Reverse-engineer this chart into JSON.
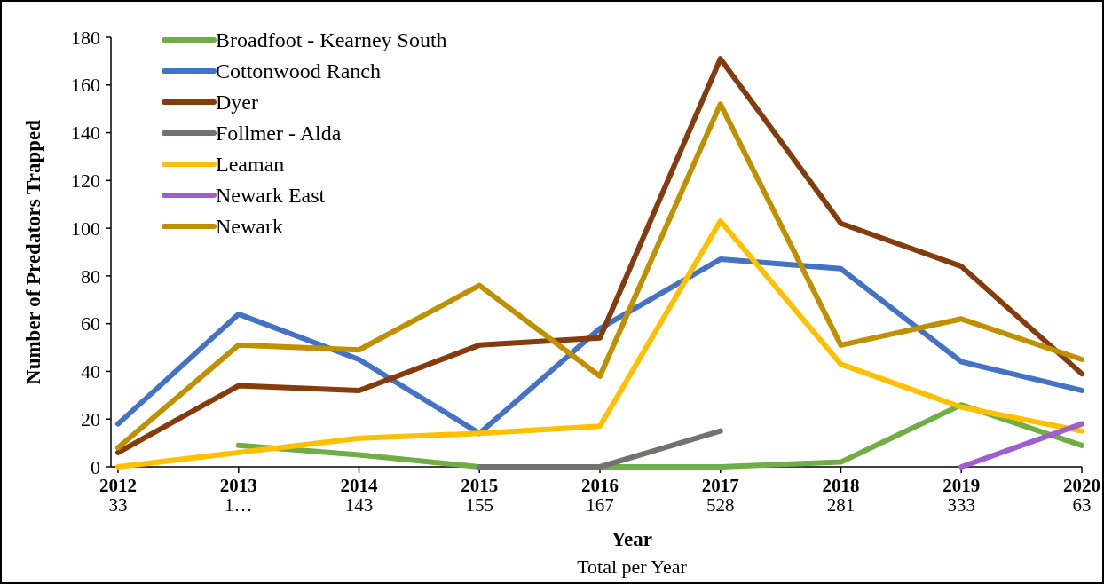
{
  "chart_data": {
    "type": "line",
    "xlabel": "Year",
    "ylabel": "Number of Predators Trapped",
    "categories": [
      "2012",
      "2013",
      "2014",
      "2015",
      "2016",
      "2017",
      "2018",
      "2019",
      "2020"
    ],
    "series": [
      {
        "name": "Broadfoot - Kearney South",
        "color": "#70ad47",
        "values": [
          null,
          9,
          5,
          0,
          0,
          0,
          2,
          26,
          9
        ]
      },
      {
        "name": "Cottonwood Ranch",
        "color": "#4472c4",
        "values": [
          18,
          64,
          45,
          14,
          58,
          87,
          83,
          44,
          32
        ]
      },
      {
        "name": "Dyer",
        "color": "#843c0c",
        "values": [
          6,
          34,
          32,
          51,
          54,
          171,
          102,
          84,
          39
        ]
      },
      {
        "name": "Follmer - Alda",
        "color": "#767171",
        "values": [
          null,
          null,
          null,
          0,
          0,
          15,
          null,
          null,
          null
        ]
      },
      {
        "name": "Leaman",
        "color": "#ffc000",
        "values": [
          0,
          6,
          12,
          14,
          17,
          103,
          43,
          25,
          15
        ]
      },
      {
        "name": "Newark East",
        "color": "#9e5ecd",
        "values": [
          null,
          null,
          null,
          null,
          null,
          null,
          null,
          0,
          18
        ]
      },
      {
        "name": "Newark",
        "color": "#bf9000",
        "values": [
          8,
          51,
          49,
          76,
          38,
          152,
          51,
          62,
          45
        ]
      }
    ],
    "ylim": [
      0,
      180
    ],
    "yticks": [
      0,
      20,
      40,
      60,
      80,
      100,
      120,
      140,
      160,
      180
    ],
    "annotations": [
      "33",
      "1…",
      "143",
      "155",
      "167",
      "528",
      "281",
      "333",
      "63",
      "Total per Year"
    ],
    "legend": "top left",
    "grid": false,
    "marker": "none",
    "line_style": "solid"
  }
}
